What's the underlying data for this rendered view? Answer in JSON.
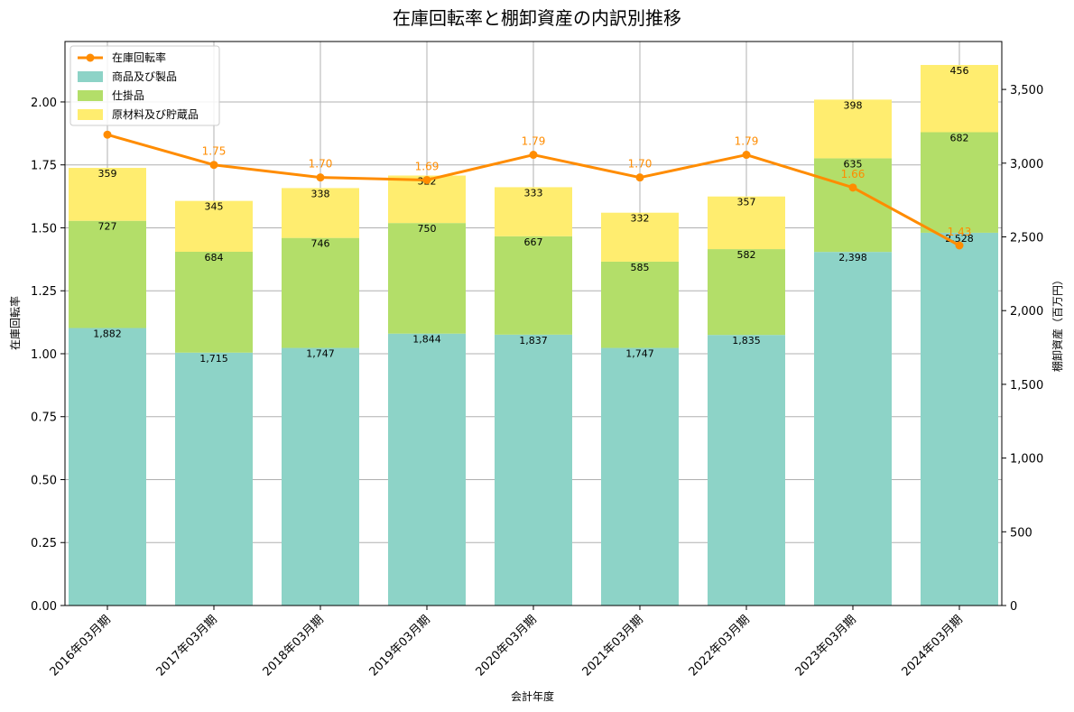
{
  "chart_data": {
    "type": "bar",
    "title": "在庫回転率と棚卸資産の内訳別推移",
    "xlabel": "会計年度",
    "ylabel_left": "在庫回転率",
    "ylabel_right": "棚卸資産（百万円）",
    "categories": [
      "2016年03月期",
      "2017年03月期",
      "2018年03月期",
      "2019年03月期",
      "2020年03月期",
      "2021年03月期",
      "2022年03月期",
      "2023年03月期",
      "2024年03月期"
    ],
    "ylim_left": [
      0,
      2.24
    ],
    "ylim_right": [
      0,
      3825
    ],
    "yticks_left": [
      "0.00",
      "0.25",
      "0.50",
      "0.75",
      "1.00",
      "1.25",
      "1.50",
      "1.75",
      "2.00"
    ],
    "yticks_left_values": [
      0,
      0.25,
      0.5,
      0.75,
      1.0,
      1.25,
      1.5,
      1.75,
      2.0
    ],
    "yticks_right": [
      "0",
      "500",
      "1,000",
      "1,500",
      "2,000",
      "2,500",
      "3,000",
      "3,500"
    ],
    "yticks_right_values": [
      0,
      500,
      1000,
      1500,
      2000,
      2500,
      3000,
      3500
    ],
    "grid": true,
    "legend_position": "top-left",
    "series": [
      {
        "name": "商品及び製品",
        "kind": "bar",
        "axis": "right",
        "color": "#8dd3c7",
        "values": [
          1882,
          1715,
          1747,
          1844,
          1837,
          1747,
          1835,
          2398,
          2528
        ],
        "labels": [
          "1,882",
          "1,715",
          "1,747",
          "1,844",
          "1,837",
          "1,747",
          "1,835",
          "2,398",
          "2,528"
        ]
      },
      {
        "name": "仕掛品",
        "kind": "bar",
        "axis": "right",
        "color": "#b3de69",
        "values": [
          727,
          684,
          746,
          750,
          667,
          585,
          582,
          635,
          682
        ],
        "labels": [
          "727",
          "684",
          "746",
          "750",
          "667",
          "585",
          "582",
          "635",
          "682"
        ]
      },
      {
        "name": "原材料及び貯蔵品",
        "kind": "bar",
        "axis": "right",
        "color": "#ffed6f",
        "values": [
          359,
          345,
          338,
          322,
          333,
          332,
          357,
          398,
          456
        ],
        "labels": [
          "359",
          "345",
          "338",
          "322",
          "333",
          "332",
          "357",
          "398",
          "456"
        ]
      },
      {
        "name": "在庫回転率",
        "kind": "line",
        "axis": "left",
        "color": "#ff8c00",
        "values": [
          1.87,
          1.75,
          1.7,
          1.69,
          1.79,
          1.7,
          1.79,
          1.66,
          1.43
        ],
        "labels": [
          "",
          "1.75",
          "1.70",
          "1.69",
          "1.79",
          "1.70",
          "1.79",
          "1.66",
          "1.43"
        ]
      }
    ]
  }
}
